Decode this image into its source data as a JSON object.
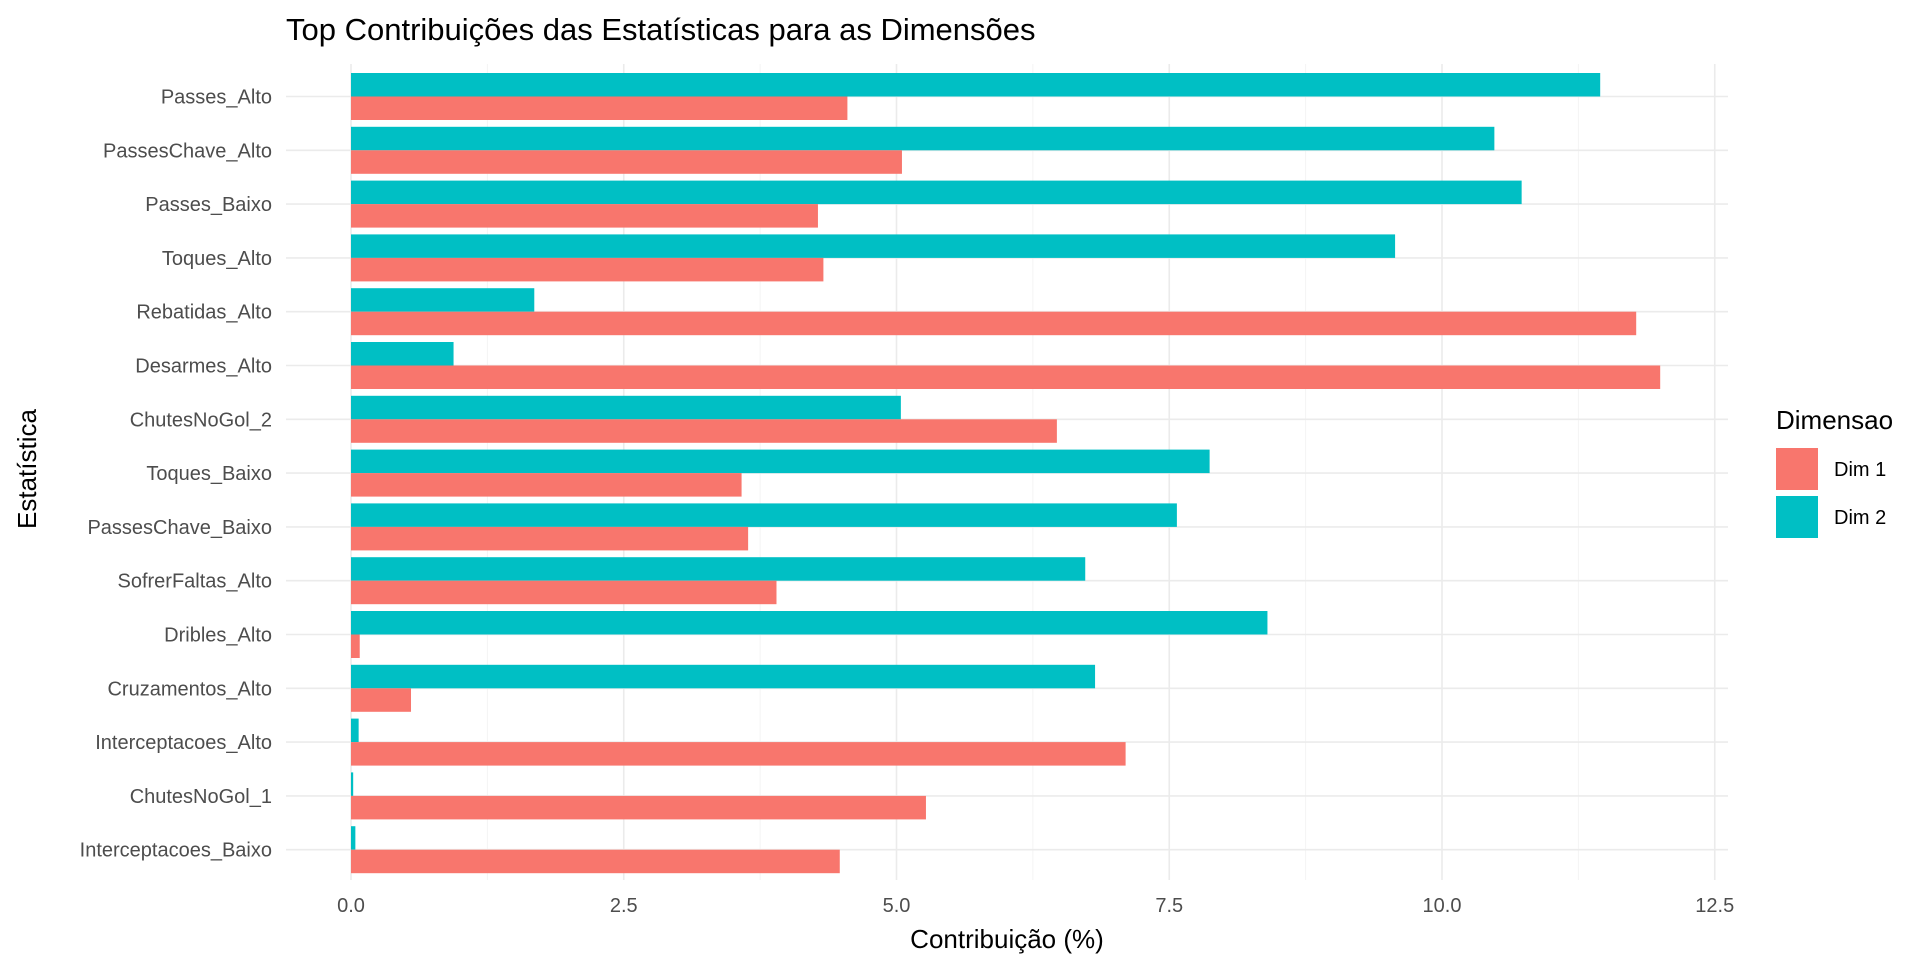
{
  "chart_data": {
    "type": "bar",
    "orientation": "horizontal",
    "title": "Top Contribuições das Estatísticas para as Dimensões",
    "xlabel": "Contribuição (%)",
    "ylabel": "Estatística",
    "xlim": [
      0,
      12.5
    ],
    "xticks": [
      0,
      2.5,
      5,
      7.5,
      10,
      12.5
    ],
    "xtick_labels": [
      "0.0",
      "2.5",
      "5.0",
      "7.5",
      "10.0",
      "12.5"
    ],
    "grid": true,
    "legend": {
      "title": "Dimensao",
      "position": "right"
    },
    "categories": [
      "Passes_Alto",
      "PassesChave_Alto",
      "Passes_Baixo",
      "Toques_Alto",
      "Rebatidas_Alto",
      "Desarmes_Alto",
      "ChutesNoGol_2",
      "Toques_Baixo",
      "PassesChave_Baixo",
      "SofrerFaltas_Alto",
      "Dribles_Alto",
      "Cruzamentos_Alto",
      "Interceptacoes_Alto",
      "ChutesNoGol_1",
      "Interceptacoes_Baixo"
    ],
    "series": [
      {
        "name": "Dim 1",
        "color": "#F8766D",
        "values": [
          4.55,
          5.05,
          4.28,
          4.33,
          11.78,
          12.0,
          6.47,
          3.58,
          3.64,
          3.9,
          0.08,
          0.55,
          7.1,
          5.27,
          4.48
        ]
      },
      {
        "name": "Dim 2",
        "color": "#00BFC4",
        "values": [
          11.45,
          10.48,
          10.73,
          9.57,
          1.68,
          0.94,
          5.04,
          7.87,
          7.57,
          6.73,
          8.4,
          6.82,
          0.07,
          0.02,
          0.04
        ]
      }
    ]
  }
}
